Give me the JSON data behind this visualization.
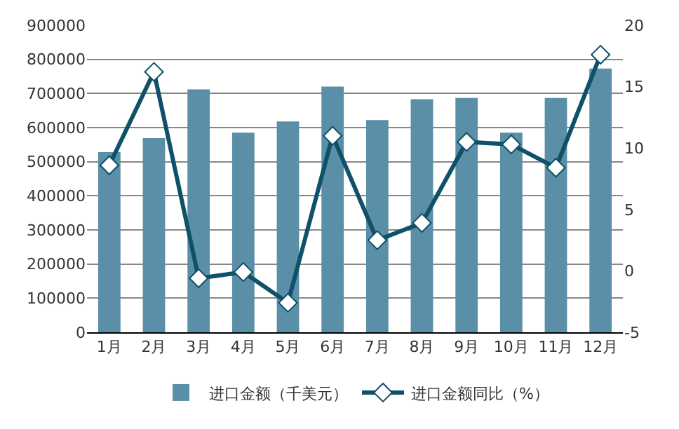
{
  "chart_data": {
    "type": "bar",
    "categories": [
      "1月",
      "2月",
      "3月",
      "4月",
      "5月",
      "6月",
      "7月",
      "8月",
      "9月",
      "10月",
      "11月",
      "12月"
    ],
    "series": [
      {
        "name": "进口金额（千美元）",
        "color": "#5b8fa8",
        "values": [
          528000,
          569000,
          712000,
          585000,
          618000,
          720000,
          622000,
          683000,
          687000,
          585000,
          687000,
          773000
        ]
      },
      {
        "name": "进口金额同比（%）",
        "type": "line",
        "axis": "y2",
        "color": "#0e5169",
        "marker": "diamond",
        "values": [
          8.6,
          16.2,
          -0.6,
          -0.1,
          -2.6,
          11.0,
          2.5,
          3.9,
          10.5,
          10.3,
          8.4,
          17.6
        ]
      }
    ],
    "ylim": [
      0,
      900000
    ],
    "yticks": [
      0,
      100000,
      200000,
      300000,
      400000,
      500000,
      600000,
      700000,
      800000,
      900000
    ],
    "y2lim": [
      -5,
      20
    ],
    "y2ticks": [
      -5,
      0,
      5,
      10,
      15,
      20
    ],
    "grid": "y",
    "legend": "bottom"
  }
}
